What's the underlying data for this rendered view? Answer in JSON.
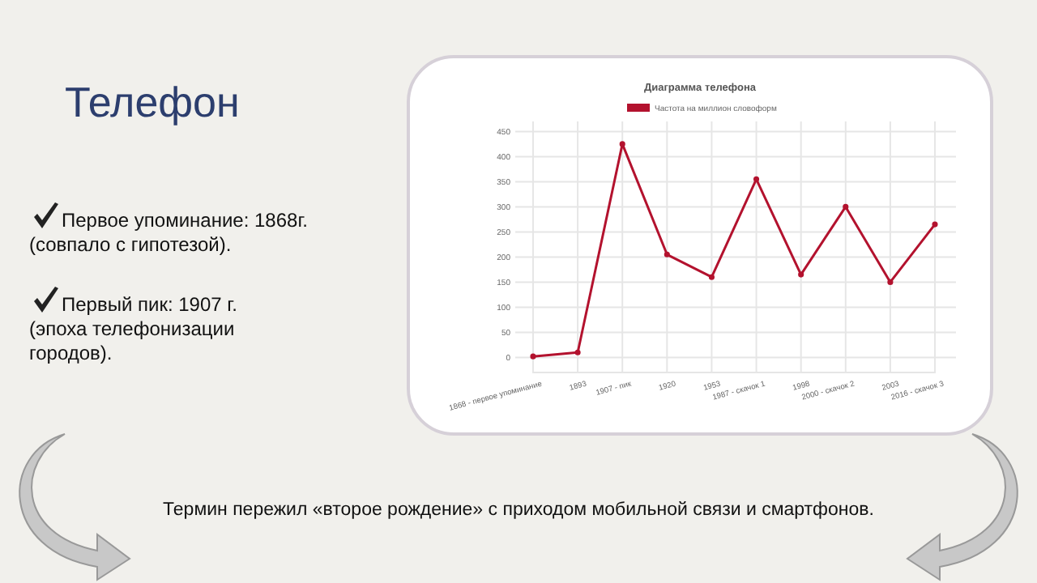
{
  "chart_data": {
    "type": "line",
    "title": "Диаграмма телефона",
    "categories": [
      "1868 - первое упоминание",
      "1893",
      "1907 - пик",
      "1920",
      "1953",
      "1987 - скачок 1",
      "1998",
      "2000 - скачок 2",
      "2003",
      "2016 - скачок 3"
    ],
    "series": [
      {
        "name": "Частота на миллион словоформ",
        "color": "#b3122e",
        "values": [
          2,
          10,
          425,
          205,
          160,
          355,
          165,
          300,
          150,
          265
        ]
      }
    ],
    "ylim": [
      -30,
      470
    ],
    "yticks": [
      0,
      50,
      100,
      150,
      200,
      250,
      300,
      350,
      400,
      450
    ],
    "grid": true,
    "legend": "top",
    "marker": "circle",
    "line_style": "solid",
    "annotations": [
      "Телефон",
      "Первое упоминание: 1868г.\n(совпало с гипотезой).",
      "Первый пик: 1907 г.\n(эпоха телефонизации\nгородов).",
      "Термин пережил «второе рождение» с приходом мобильной связи и смартфонов."
    ]
  }
}
